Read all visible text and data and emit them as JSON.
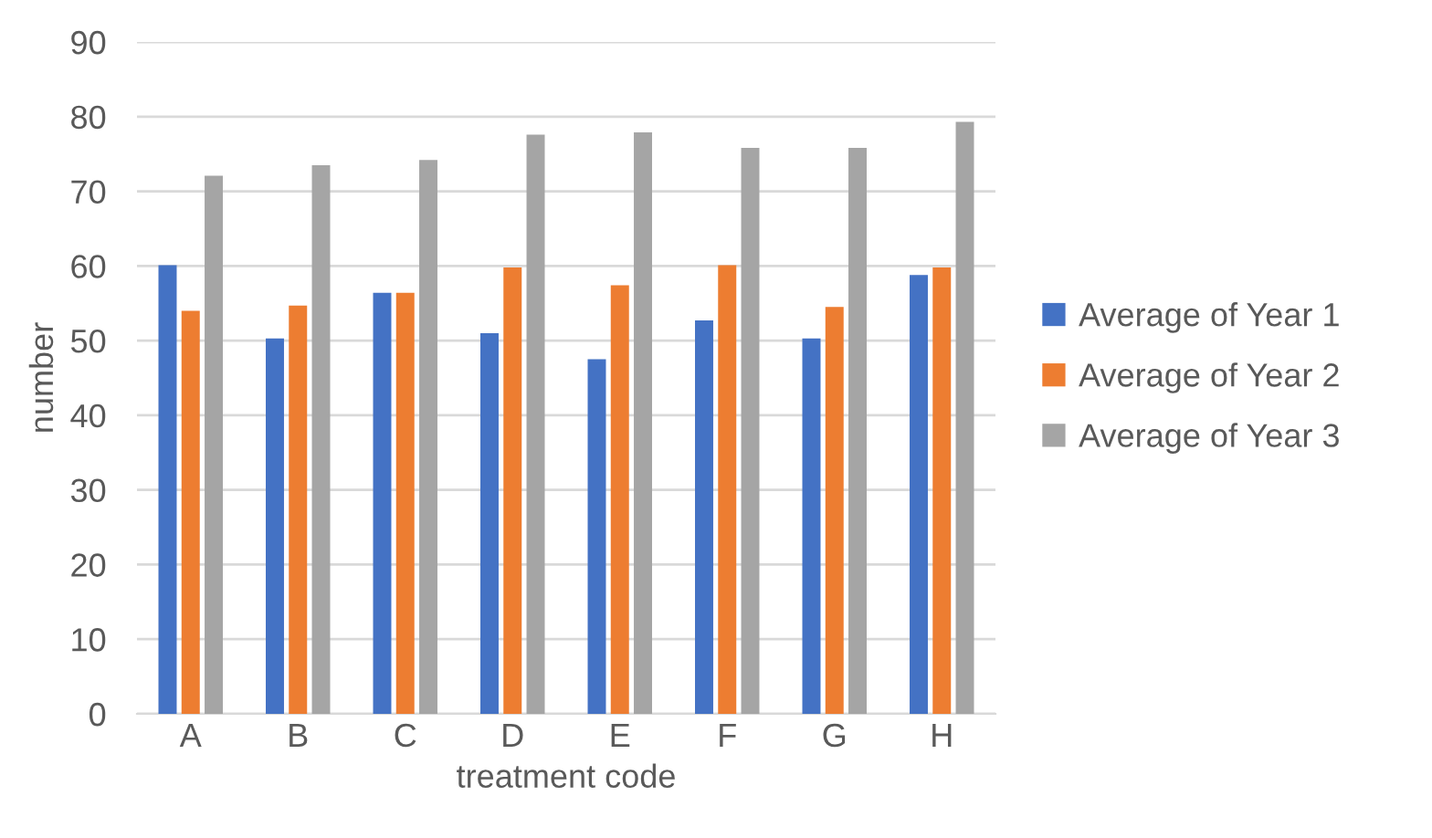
{
  "chart_data": {
    "type": "bar",
    "xlabel": "treatment code",
    "ylabel": "number",
    "categories": [
      "A",
      "B",
      "C",
      "D",
      "E",
      "F",
      "G",
      "H"
    ],
    "series": [
      {
        "name": "Average of Year 1",
        "color": "#4472c4",
        "values": [
          60.1,
          50.3,
          56.4,
          51.0,
          47.5,
          52.7,
          50.3,
          58.8
        ]
      },
      {
        "name": "Average of Year 2",
        "color": "#ed7d31",
        "values": [
          54.0,
          54.7,
          56.4,
          59.8,
          57.4,
          60.1,
          54.5,
          59.8
        ]
      },
      {
        "name": "Average of Year 3",
        "color": "#a5a5a5",
        "values": [
          72.1,
          73.5,
          74.2,
          77.6,
          77.9,
          75.8,
          75.8,
          79.3
        ]
      }
    ],
    "ylim": [
      0,
      90
    ],
    "yticks": [
      0,
      10,
      20,
      30,
      40,
      50,
      60,
      70,
      80,
      90
    ],
    "grid": "y",
    "legend": "right"
  }
}
